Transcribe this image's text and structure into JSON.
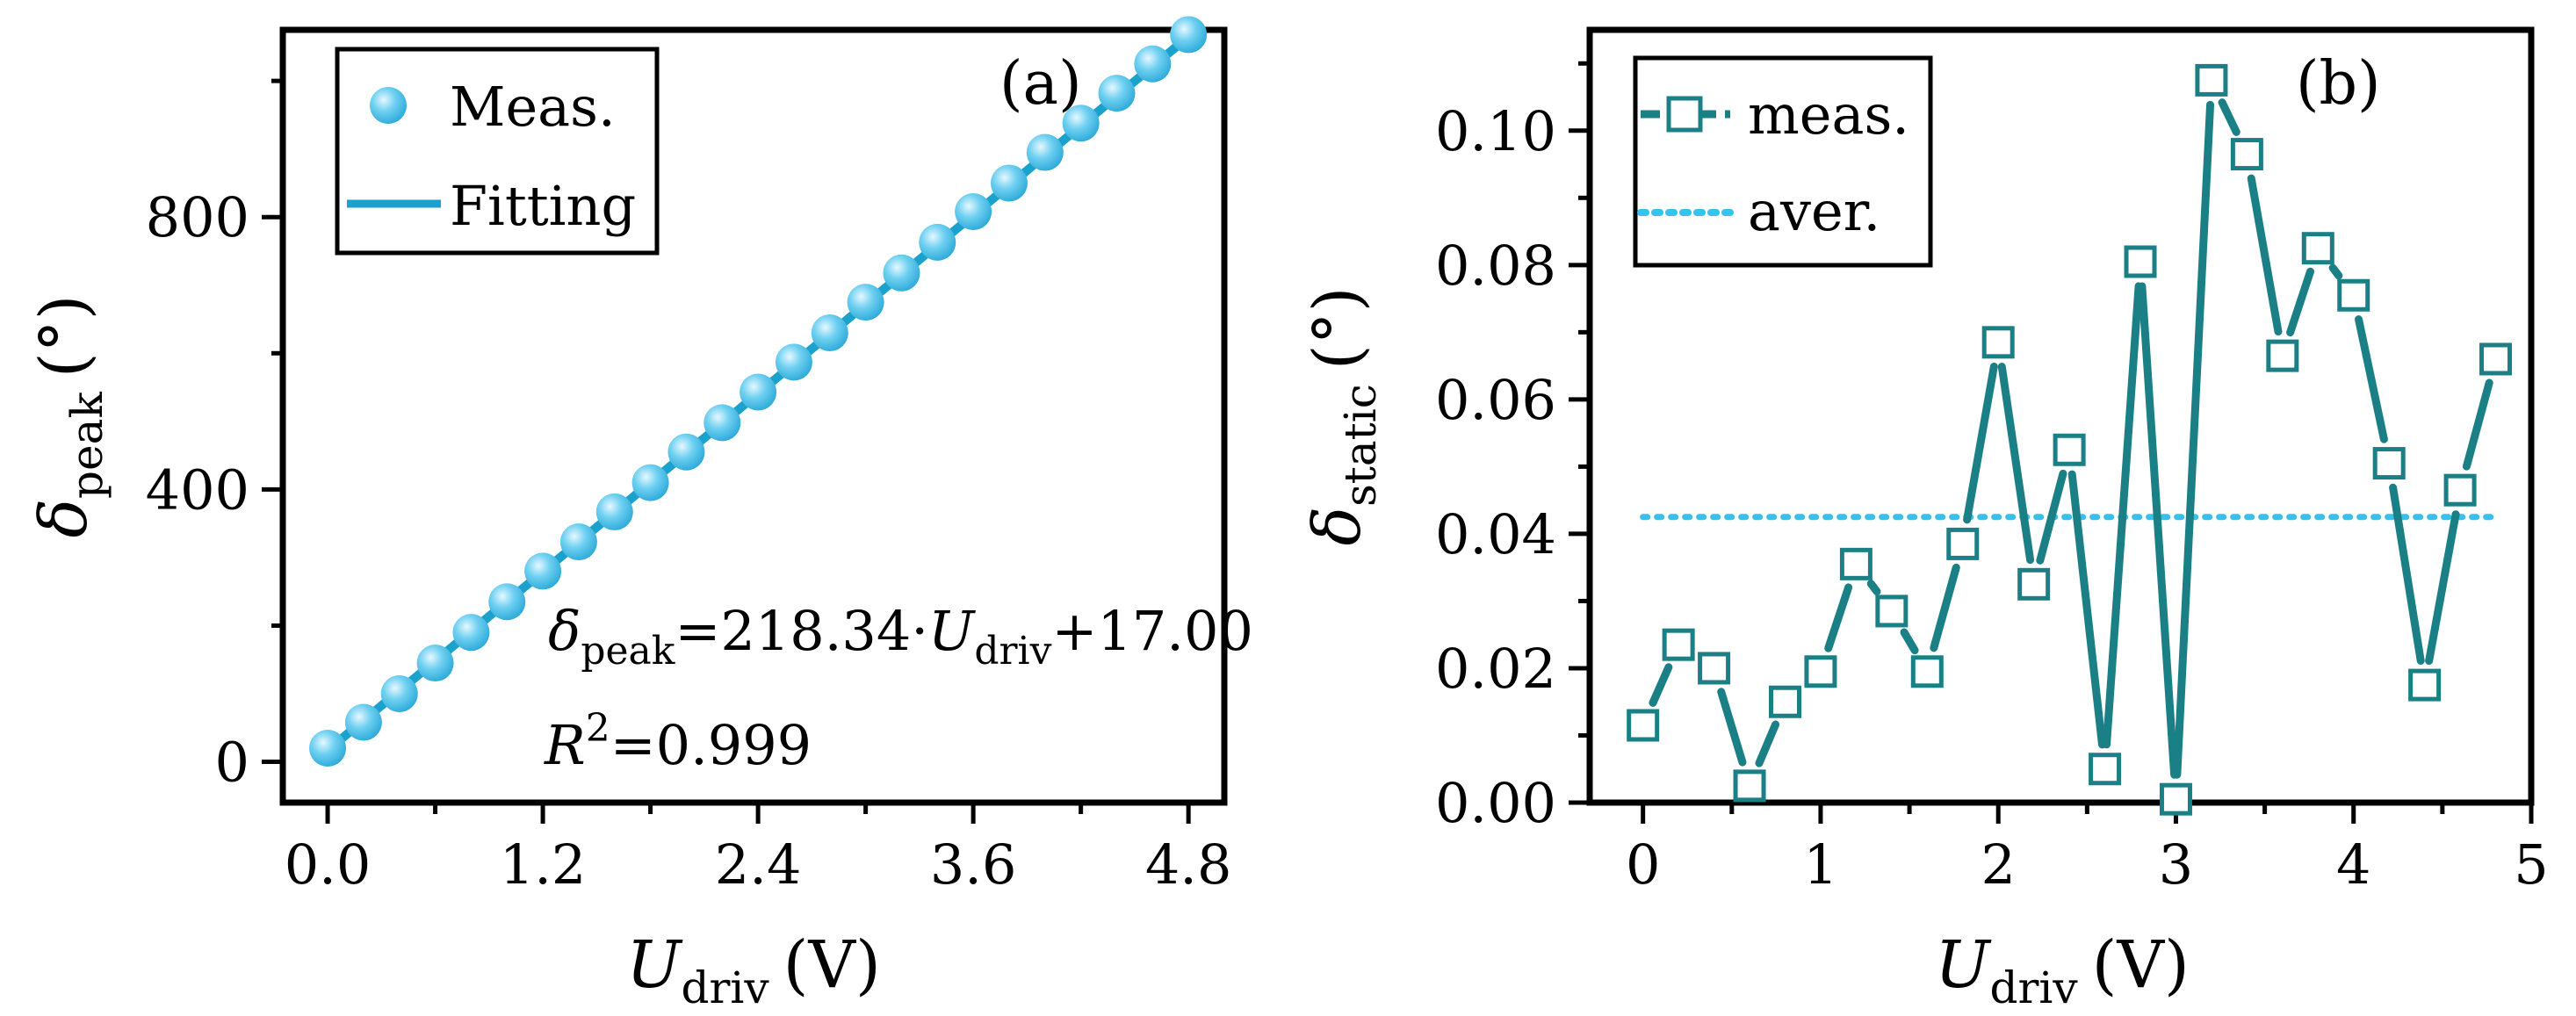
{
  "chart_data": [
    {
      "type": "scatter",
      "panel_label": "(a)",
      "xlabel": {
        "main": "U",
        "sub": "driv",
        "unit": "(V)"
      },
      "ylabel": {
        "main": "δ",
        "sub": "peak",
        "unit": "(°)"
      },
      "xlim": [
        -0.25,
        5.0
      ],
      "ylim": [
        -60,
        1075
      ],
      "xticks": [
        0.0,
        1.2,
        2.4,
        3.6,
        4.8
      ],
      "xtick_labels": [
        "0.0",
        "1.2",
        "2.4",
        "3.6",
        "4.8"
      ],
      "yticks": [
        0,
        400,
        800
      ],
      "ytick_labels": [
        "0",
        "400",
        "800"
      ],
      "grid": false,
      "legend": {
        "position": "top-left",
        "entries": [
          "Meas.",
          "Fitting"
        ]
      },
      "series": [
        {
          "name": "Meas.",
          "kind": "markers",
          "color": "#5bc8ec",
          "x": [
            0.0,
            0.2,
            0.4,
            0.6,
            0.8,
            1.0,
            1.2,
            1.4,
            1.6,
            1.8,
            2.0,
            2.2,
            2.4,
            2.6,
            2.8,
            3.0,
            3.2,
            3.4,
            3.6,
            3.8,
            4.0,
            4.2,
            4.4,
            4.6,
            4.8
          ],
          "y": [
            20,
            58,
            100,
            145,
            190,
            235,
            280,
            323,
            367,
            410,
            455,
            498,
            543,
            587,
            630,
            675,
            718,
            763,
            808,
            850,
            895,
            938,
            982,
            1025,
            1068
          ]
        },
        {
          "name": "Fitting",
          "kind": "line",
          "color": "#1aa2cc",
          "slope": 218.34,
          "intercept": 17.0,
          "x_range": [
            0.0,
            4.8
          ]
        }
      ],
      "annotations": {
        "equation": {
          "lhs": "δ",
          "lhs_sub": "peak",
          "mid": "=218.34·",
          "var": "U",
          "var_sub": "driv",
          "rhs": "+17.00"
        },
        "r2": {
          "sym": "R",
          "sup": "2",
          "val": "=0.999"
        }
      }
    },
    {
      "type": "line",
      "panel_label": "(b)",
      "xlabel": {
        "main": "U",
        "sub": "driv",
        "unit": "(V)"
      },
      "ylabel": {
        "main": "δ",
        "sub": "static",
        "unit": "(°)"
      },
      "xlim": [
        -0.3,
        5.0
      ],
      "ylim": [
        0.0,
        0.115
      ],
      "xticks": [
        0,
        1,
        2,
        3,
        4,
        5
      ],
      "xtick_labels": [
        "0",
        "1",
        "2",
        "3",
        "4",
        "5"
      ],
      "yticks": [
        0.0,
        0.02,
        0.04,
        0.06,
        0.08,
        0.1
      ],
      "ytick_labels": [
        "0.00",
        "0.02",
        "0.04",
        "0.06",
        "0.08",
        "0.10"
      ],
      "grid": false,
      "legend": {
        "position": "top-left",
        "entries": [
          "meas.",
          "aver."
        ]
      },
      "series": [
        {
          "name": "meas.",
          "kind": "line-open-square",
          "color": "#1b7f86",
          "x": [
            0.0,
            0.2,
            0.4,
            0.6,
            0.8,
            1.0,
            1.2,
            1.4,
            1.6,
            1.8,
            2.0,
            2.2,
            2.4,
            2.6,
            2.8,
            3.0,
            3.2,
            3.4,
            3.6,
            3.8,
            4.0,
            4.2,
            4.4,
            4.6,
            4.8
          ],
          "y": [
            0.0115,
            0.0235,
            0.02,
            0.0025,
            0.015,
            0.0195,
            0.0355,
            0.0285,
            0.0195,
            0.0385,
            0.0685,
            0.0325,
            0.0525,
            0.005,
            0.0805,
            0.0005,
            0.1075,
            0.0965,
            0.0665,
            0.0825,
            0.0755,
            0.0505,
            0.0175,
            0.0465,
            0.066
          ]
        },
        {
          "name": "aver.",
          "kind": "dotted-line",
          "color": "#36c2ec",
          "y": 0.0425,
          "x_range": [
            0.0,
            4.8
          ]
        }
      ]
    }
  ]
}
